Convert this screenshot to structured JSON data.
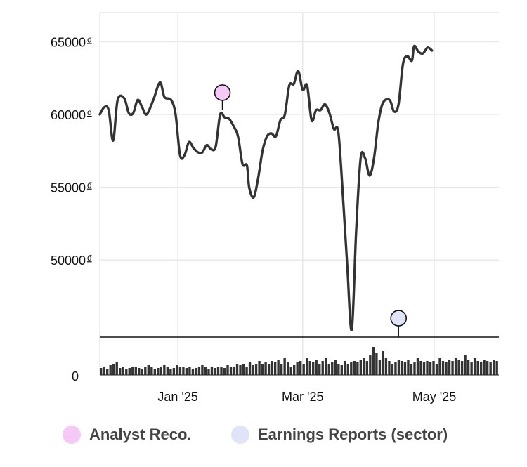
{
  "chart_data": {
    "type": "line",
    "y_ticks": [
      {
        "value": 65000,
        "label": "65000",
        "unit": "đ"
      },
      {
        "value": 60000,
        "label": "60000",
        "unit": "đ"
      },
      {
        "value": 55000,
        "label": "55000",
        "unit": "đ"
      },
      {
        "value": 50000,
        "label": "50000",
        "unit": "đ"
      }
    ],
    "volume_zero_label": "0",
    "x_ticks": [
      {
        "date": "2025-01-06",
        "label": "Jan '25"
      },
      {
        "date": "2025-03-03",
        "label": "Mar '25"
      },
      {
        "date": "2025-05-01",
        "label": "May '25"
      }
    ],
    "ylim": [
      44700,
      67000
    ],
    "xlim": [
      "2024-12-02",
      "2025-05-30"
    ],
    "grid": true,
    "series": [
      {
        "type": "line",
        "color": "#333333",
        "points": [
          [
            "2024-12-02",
            60000
          ],
          [
            "2024-12-04",
            60500
          ],
          [
            "2024-12-06",
            60300
          ],
          [
            "2024-12-08",
            58200
          ],
          [
            "2024-12-10",
            61000
          ],
          [
            "2024-12-13",
            61100
          ],
          [
            "2024-12-15",
            60100
          ],
          [
            "2024-12-17",
            60100
          ],
          [
            "2024-12-19",
            61000
          ],
          [
            "2024-12-21",
            60500
          ],
          [
            "2024-12-23",
            60000
          ],
          [
            "2024-12-26",
            61000
          ],
          [
            "2024-12-29",
            62200
          ],
          [
            "2024-12-31",
            61200
          ],
          [
            "2025-01-03",
            61000
          ],
          [
            "2025-01-05",
            60000
          ],
          [
            "2025-01-07",
            57200
          ],
          [
            "2025-01-09",
            57200
          ],
          [
            "2025-01-11",
            58100
          ],
          [
            "2025-01-13",
            57700
          ],
          [
            "2025-01-15",
            57400
          ],
          [
            "2025-01-17",
            57400
          ],
          [
            "2025-01-19",
            57900
          ],
          [
            "2025-01-21",
            57600
          ],
          [
            "2025-01-23",
            57800
          ],
          [
            "2025-01-25",
            60000
          ],
          [
            "2025-01-27",
            59800
          ],
          [
            "2025-01-29",
            59700
          ],
          [
            "2025-01-31",
            59200
          ],
          [
            "2025-02-02",
            58500
          ],
          [
            "2025-02-04",
            56600
          ],
          [
            "2025-02-06",
            56500
          ],
          [
            "2025-02-07",
            55000
          ],
          [
            "2025-02-09",
            54300
          ],
          [
            "2025-02-11",
            55600
          ],
          [
            "2025-02-13",
            57500
          ],
          [
            "2025-02-15",
            58500
          ],
          [
            "2025-02-17",
            58700
          ],
          [
            "2025-02-19",
            58500
          ],
          [
            "2025-02-21",
            59600
          ],
          [
            "2025-02-23",
            60000
          ],
          [
            "2025-02-25",
            62000
          ],
          [
            "2025-02-27",
            62100
          ],
          [
            "2025-03-01",
            63000
          ],
          [
            "2025-03-03",
            61700
          ],
          [
            "2025-03-05",
            62000
          ],
          [
            "2025-03-07",
            59600
          ],
          [
            "2025-03-09",
            60300
          ],
          [
            "2025-03-11",
            60300
          ],
          [
            "2025-03-13",
            60700
          ],
          [
            "2025-03-15",
            60100
          ],
          [
            "2025-03-17",
            59000
          ],
          [
            "2025-03-19",
            58800
          ],
          [
            "2025-03-21",
            54500
          ],
          [
            "2025-03-23",
            49600
          ],
          [
            "2025-03-25",
            45200
          ],
          [
            "2025-03-27",
            52000
          ],
          [
            "2025-03-29",
            57000
          ],
          [
            "2025-03-31",
            57000
          ],
          [
            "2025-04-02",
            55800
          ],
          [
            "2025-04-04",
            57000
          ],
          [
            "2025-04-06",
            59500
          ],
          [
            "2025-04-08",
            60800
          ],
          [
            "2025-04-11",
            61000
          ],
          [
            "2025-04-13",
            60200
          ],
          [
            "2025-04-15",
            60700
          ],
          [
            "2025-04-17",
            63500
          ],
          [
            "2025-04-19",
            64000
          ],
          [
            "2025-04-21",
            63700
          ],
          [
            "2025-04-22",
            64700
          ],
          [
            "2025-04-24",
            64300
          ],
          [
            "2025-04-26",
            64200
          ],
          [
            "2025-04-28",
            64600
          ],
          [
            "2025-04-30",
            64400
          ]
        ]
      }
    ],
    "events": [
      {
        "name": "Analyst Reco.",
        "color": "#f5c8f5",
        "date": "2025-01-26",
        "value": 61500
      },
      {
        "name": "Earnings Reports (sector)",
        "color": "#e1e4f8",
        "date": "2025-04-15",
        "value": 46000
      }
    ],
    "volume": [
      0.25,
      0.3,
      0.2,
      0.35,
      0.4,
      0.45,
      0.25,
      0.3,
      0.2,
      0.25,
      0.3,
      0.3,
      0.25,
      0.2,
      0.3,
      0.35,
      0.3,
      0.2,
      0.25,
      0.3,
      0.35,
      0.3,
      0.2,
      0.25,
      0.35,
      0.3,
      0.3,
      0.25,
      0.3,
      0.2,
      0.25,
      0.3,
      0.35,
      0.3,
      0.2,
      0.3,
      0.25,
      0.3,
      0.3,
      0.25,
      0.35,
      0.3,
      0.3,
      0.4,
      0.35,
      0.4,
      0.3,
      0.45,
      0.35,
      0.4,
      0.5,
      0.4,
      0.45,
      0.4,
      0.5,
      0.45,
      0.55,
      0.4,
      0.6,
      0.45,
      0.3,
      0.35,
      0.45,
      0.5,
      0.4,
      0.6,
      0.5,
      0.45,
      0.55,
      0.4,
      0.5,
      0.6,
      0.4,
      0.45,
      0.55,
      0.4,
      0.35,
      0.5,
      0.4,
      0.45,
      0.5,
      0.45,
      0.55,
      0.6,
      0.5,
      0.7,
      1.0,
      0.8,
      0.55,
      0.85,
      0.6,
      0.5,
      0.4,
      0.45,
      0.55,
      0.5,
      0.45,
      0.55,
      0.4,
      0.45,
      0.6,
      0.5,
      0.45,
      0.5,
      0.45,
      0.5,
      0.4,
      0.6,
      0.5,
      0.45,
      0.55,
      0.5,
      0.6,
      0.55,
      0.5,
      0.7,
      0.55,
      0.45,
      0.6,
      0.5,
      0.45,
      0.55,
      0.5,
      0.45,
      0.55,
      0.5
    ]
  },
  "legend": [
    {
      "label": "Analyst Reco.",
      "color": "#f5c8f5"
    },
    {
      "label": "Earnings Reports (sector)",
      "color": "#e1e4f8"
    }
  ]
}
